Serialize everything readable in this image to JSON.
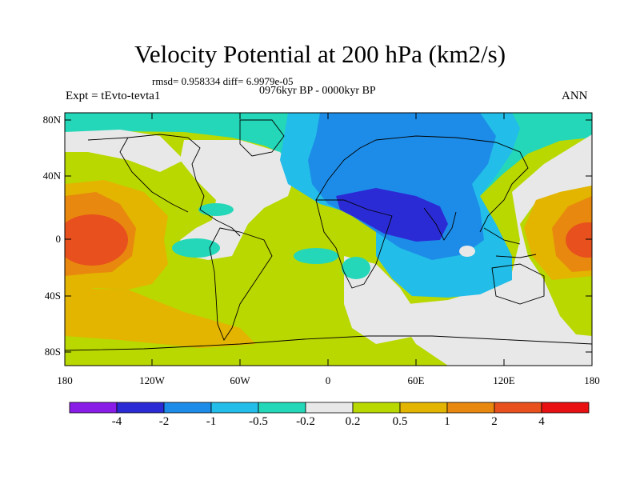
{
  "title": "Velocity Potential at 200 hPa (km2/s)",
  "stats_line": "rmsd= 0.958334 diff= 6.9979e-05",
  "period_line": "0976kyr BP - 0000kyr BP",
  "expt_label": "Expt = tEvto-tevta1",
  "season_label": "ANN",
  "map": {
    "projection": "cylindrical equidistant",
    "lon_range": [
      -180,
      180
    ],
    "lat_range": [
      -90,
      90
    ],
    "y_ticks": [
      "80N",
      "40N",
      "0",
      "40S",
      "80S"
    ],
    "x_ticks": [
      "180",
      "120W",
      "60W",
      "0",
      "60E",
      "120E",
      "180"
    ],
    "features": [
      "filled contours",
      "coastlines"
    ]
  },
  "colorbar": {
    "labels": [
      "-4",
      "-2",
      "-1",
      "-0.5",
      "-0.2",
      "0.2",
      "0.5",
      "1",
      "2",
      "4"
    ],
    "colors": [
      "#8a1ce8",
      "#2b2bd6",
      "#1d8ce8",
      "#22bde8",
      "#24d7b8",
      "#e8e8e8",
      "#b9d800",
      "#e3b400",
      "#e8880e",
      "#e8501e",
      "#e81010"
    ]
  }
}
